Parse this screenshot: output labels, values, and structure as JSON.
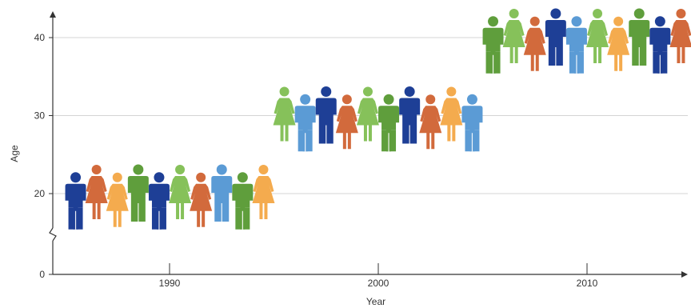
{
  "chart_data": {
    "type": "scatter",
    "title": "",
    "xlabel": "Year",
    "ylabel": "Age",
    "xlim": [
      1984.5,
      2015
    ],
    "ylim": [
      0,
      45
    ],
    "x_ticks": [
      1990,
      2000,
      2010
    ],
    "y_ticks": [
      0,
      20,
      30,
      40
    ],
    "y_axis_break": true,
    "grid": "horizontal",
    "series": [
      {
        "x": [
          1985.5,
          1986.5,
          1987.5,
          1988.5,
          1989.5,
          1990.5,
          1991.5,
          1992.5,
          1993.5,
          1994.5
        ],
        "y": [
          19,
          20,
          19,
          20,
          19,
          20,
          19,
          20,
          19,
          20
        ],
        "figures": [
          "man",
          "woman",
          "woman",
          "man",
          "man",
          "woman",
          "woman",
          "man",
          "man",
          "woman"
        ],
        "colors": [
          "#1e3f96",
          "#d26a3c",
          "#f4ab4e",
          "#5f9e3c",
          "#1e3f96",
          "#86c15a",
          "#d26a3c",
          "#5b9bd5",
          "#5f9e3c",
          "#f4ab4e"
        ]
      },
      {
        "x": [
          1995.5,
          1996.5,
          1997.5,
          1998.5,
          1999.5,
          2000.5,
          2001.5,
          2002.5,
          2003.5,
          2004.5
        ],
        "y": [
          30,
          29,
          30,
          29,
          30,
          29,
          30,
          29,
          30,
          29
        ],
        "figures": [
          "woman",
          "man",
          "man",
          "woman",
          "woman",
          "man",
          "man",
          "woman",
          "woman",
          "man"
        ],
        "colors": [
          "#86c15a",
          "#5b9bd5",
          "#1e3f96",
          "#d26a3c",
          "#86c15a",
          "#5f9e3c",
          "#1e3f96",
          "#d26a3c",
          "#f4ab4e",
          "#5b9bd5"
        ]
      },
      {
        "x": [
          2005.5,
          2006.5,
          2007.5,
          2008.5,
          2009.5,
          2010.5,
          2011.5,
          2012.5,
          2013.5,
          2014.5
        ],
        "y": [
          39,
          40,
          39,
          40,
          39,
          40,
          39,
          40,
          39,
          40
        ],
        "figures": [
          "man",
          "woman",
          "woman",
          "man",
          "man",
          "woman",
          "woman",
          "man",
          "man",
          "woman"
        ],
        "colors": [
          "#5f9e3c",
          "#86c15a",
          "#d26a3c",
          "#1e3f96",
          "#5b9bd5",
          "#86c15a",
          "#f4ab4e",
          "#5f9e3c",
          "#1e3f96",
          "#d26a3c"
        ]
      }
    ]
  }
}
